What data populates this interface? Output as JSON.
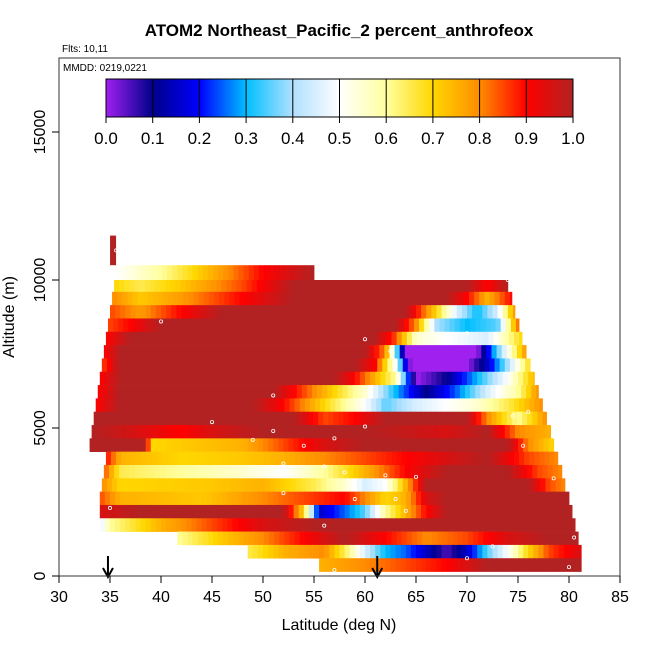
{
  "chart_data": {
    "type": "heatmap",
    "title": "ATOM2 Northeast_Pacific_2 percent_anthrofeox",
    "annotations": {
      "flights": "Flts: 10,11",
      "dates": "MMDD: 0219,0221"
    },
    "xlabel": "Latitude (deg N)",
    "ylabel": "Altitude (m)",
    "xlim": [
      30,
      85
    ],
    "ylim": [
      0,
      17500
    ],
    "xticks": [
      30,
      35,
      40,
      45,
      50,
      55,
      60,
      65,
      70,
      75,
      80,
      85
    ],
    "yticks": [
      0,
      5000,
      10000,
      15000
    ],
    "grid": false,
    "colorbar": {
      "position": "top-inside",
      "ticks": [
        "0.0",
        "0.1",
        "0.2",
        "0.3",
        "0.4",
        "0.5",
        "0.6",
        "0.7",
        "0.8",
        "0.9",
        "1.0"
      ],
      "range": [
        0,
        1
      ],
      "stops": [
        {
          "v": 0.0,
          "c": "#a020f0"
        },
        {
          "v": 0.1,
          "c": "#00008b"
        },
        {
          "v": 0.2,
          "c": "#0000ff"
        },
        {
          "v": 0.3,
          "c": "#00bfff"
        },
        {
          "v": 0.4,
          "c": "#b0e0ff"
        },
        {
          "v": 0.5,
          "c": "#ffffff"
        },
        {
          "v": 0.6,
          "c": "#ffff9f"
        },
        {
          "v": 0.7,
          "c": "#ffd700"
        },
        {
          "v": 0.8,
          "c": "#ff8c00"
        },
        {
          "v": 0.9,
          "c": "#ff0000"
        },
        {
          "v": 1.0,
          "c": "#b22222"
        }
      ]
    },
    "layers": [
      {
        "ybot": 10000,
        "ytop": 10500,
        "x0": 35.6,
        "x1": 55.0,
        "pts": [
          [
            35.6,
            0.5
          ],
          [
            40,
            0.6
          ],
          [
            45,
            0.75
          ],
          [
            50,
            0.9
          ],
          [
            55,
            1.0
          ]
        ]
      },
      {
        "ybot": 9600,
        "ytop": 10000,
        "x0": 35.4,
        "x1": 74.0,
        "pts": [
          [
            35.4,
            0.7
          ],
          [
            38,
            0.65
          ],
          [
            42,
            0.72
          ],
          [
            48,
            0.85
          ],
          [
            53,
            1.0
          ],
          [
            70,
            1.0
          ],
          [
            72,
            0.9
          ],
          [
            74,
            1.0
          ]
        ]
      },
      {
        "ybot": 9150,
        "ytop": 9600,
        "x0": 35.2,
        "x1": 74.4,
        "pts": [
          [
            35.2,
            0.8
          ],
          [
            38,
            0.72
          ],
          [
            42,
            0.78
          ],
          [
            48,
            0.9
          ],
          [
            53,
            1.0
          ],
          [
            68,
            1.0
          ],
          [
            70,
            0.9
          ],
          [
            72,
            0.75
          ],
          [
            74.4,
            0.9
          ]
        ]
      },
      {
        "ybot": 8700,
        "ytop": 9150,
        "x0": 35.0,
        "x1": 74.7,
        "pts": [
          [
            35,
            0.85
          ],
          [
            38,
            0.78
          ],
          [
            42,
            0.9
          ],
          [
            46,
            1.0
          ],
          [
            64,
            1.0
          ],
          [
            67,
            0.7
          ],
          [
            69,
            0.45
          ],
          [
            71,
            0.3
          ],
          [
            73,
            0.45
          ],
          [
            74.7,
            0.8
          ]
        ]
      },
      {
        "ybot": 8250,
        "ytop": 8700,
        "x0": 34.8,
        "x1": 75.1,
        "pts": [
          [
            34.8,
            0.85
          ],
          [
            37,
            0.9
          ],
          [
            40,
            1.0
          ],
          [
            63,
            1.0
          ],
          [
            65,
            0.8
          ],
          [
            67,
            0.4
          ],
          [
            70,
            0.3
          ],
          [
            73,
            0.35
          ],
          [
            75.1,
            0.85
          ]
        ]
      },
      {
        "ybot": 7800,
        "ytop": 8250,
        "x0": 34.6,
        "x1": 75.4,
        "pts": [
          [
            34.6,
            0.9
          ],
          [
            37,
            1.0
          ],
          [
            61,
            1.0
          ],
          [
            63,
            0.85
          ],
          [
            65,
            0.55
          ],
          [
            68,
            0.5
          ],
          [
            72,
            0.45
          ],
          [
            75.4,
            0.7
          ]
        ]
      },
      {
        "ybot": 7350,
        "ytop": 7800,
        "x0": 34.4,
        "x1": 75.8,
        "pts": [
          [
            34.4,
            0.9
          ],
          [
            36,
            1.0
          ],
          [
            60,
            1.0
          ],
          [
            62,
            0.8
          ],
          [
            64,
            0.0
          ],
          [
            71,
            0.0
          ],
          [
            73,
            0.35
          ],
          [
            75.8,
            0.8
          ]
        ]
      },
      {
        "ybot": 6900,
        "ytop": 7350,
        "x0": 34.2,
        "x1": 76.2,
        "pts": [
          [
            34.2,
            0.85
          ],
          [
            36,
            1.0
          ],
          [
            59,
            1.0
          ],
          [
            61,
            0.9
          ],
          [
            63,
            0.5
          ],
          [
            64.5,
            0.0
          ],
          [
            70,
            0.0
          ],
          [
            72,
            0.15
          ],
          [
            74,
            0.4
          ],
          [
            76.2,
            0.7
          ]
        ]
      },
      {
        "ybot": 6450,
        "ytop": 6900,
        "x0": 34.0,
        "x1": 76.6,
        "pts": [
          [
            34,
            0.9
          ],
          [
            36,
            1.0
          ],
          [
            57,
            1.0
          ],
          [
            59,
            0.9
          ],
          [
            61,
            0.75
          ],
          [
            63,
            0.6
          ],
          [
            65,
            0.0
          ],
          [
            68,
            0.1
          ],
          [
            71,
            0.3
          ],
          [
            74,
            0.5
          ],
          [
            76.6,
            0.75
          ]
        ]
      },
      {
        "ybot": 6000,
        "ytop": 6450,
        "x0": 33.8,
        "x1": 77.0,
        "pts": [
          [
            33.8,
            0.9
          ],
          [
            36,
            1.0
          ],
          [
            51,
            1.0
          ],
          [
            54,
            0.85
          ],
          [
            57,
            0.7
          ],
          [
            60,
            0.55
          ],
          [
            63,
            0.3
          ],
          [
            66,
            0.1
          ],
          [
            69,
            0.25
          ],
          [
            72,
            0.45
          ],
          [
            75,
            0.6
          ],
          [
            77,
            0.8
          ]
        ]
      },
      {
        "ybot": 5550,
        "ytop": 6000,
        "x0": 33.6,
        "x1": 77.4,
        "pts": [
          [
            33.6,
            0.9
          ],
          [
            36,
            1.0
          ],
          [
            49,
            1.0
          ],
          [
            52,
            0.9
          ],
          [
            55,
            0.75
          ],
          [
            58,
            0.6
          ],
          [
            60,
            0.5
          ],
          [
            62,
            0.35
          ],
          [
            65,
            0.45
          ],
          [
            68,
            0.5
          ],
          [
            71,
            0.55
          ],
          [
            74,
            0.65
          ],
          [
            77.4,
            0.8
          ]
        ]
      },
      {
        "ybot": 5100,
        "ytop": 5550,
        "x0": 33.4,
        "x1": 77.8,
        "pts": [
          [
            33.4,
            1.0
          ],
          [
            53,
            1.0
          ],
          [
            56,
            0.85
          ],
          [
            59,
            0.9
          ],
          [
            62,
            1.0
          ],
          [
            70,
            1.0
          ],
          [
            72,
            0.8
          ],
          [
            75,
            0.6
          ],
          [
            77.8,
            0.8
          ]
        ]
      },
      {
        "ybot": 4650,
        "ytop": 5100,
        "x0": 33.2,
        "x1": 78.2,
        "pts": [
          [
            33.2,
            1.0
          ],
          [
            42,
            0.9
          ],
          [
            45,
            0.95
          ],
          [
            50,
            1.0
          ],
          [
            60,
            1.0
          ],
          [
            68,
            0.95
          ],
          [
            72,
            1.0
          ],
          [
            75,
            0.8
          ],
          [
            78.2,
            0.75
          ]
        ]
      },
      {
        "ybot": 4200,
        "ytop": 4650,
        "x0": 33.0,
        "x1": 78.5,
        "pts": [
          [
            33,
            1.0
          ],
          [
            38.5,
            1.0
          ],
          [
            39,
            0.7
          ],
          [
            48,
            0.75
          ],
          [
            52,
            0.85
          ],
          [
            56,
            0.95
          ],
          [
            60,
            1.0
          ],
          [
            74,
            1.0
          ],
          [
            76,
            0.8
          ],
          [
            78.5,
            0.7
          ]
        ]
      },
      {
        "ybot": 3750,
        "ytop": 4200,
        "x0": 34.6,
        "x1": 78.9,
        "pts": [
          [
            34.6,
            0.9
          ],
          [
            36,
            0.75
          ],
          [
            42,
            0.7
          ],
          [
            48,
            0.72
          ],
          [
            52,
            0.75
          ],
          [
            56,
            0.8
          ],
          [
            60,
            0.85
          ],
          [
            64,
            0.9
          ],
          [
            68,
            0.95
          ],
          [
            72,
            1.0
          ],
          [
            76,
            0.85
          ],
          [
            78.9,
            0.8
          ]
        ]
      },
      {
        "ybot": 3300,
        "ytop": 3750,
        "x0": 34.4,
        "x1": 79.3,
        "pts": [
          [
            34.4,
            0.85
          ],
          [
            36,
            0.65
          ],
          [
            42,
            0.6
          ],
          [
            48,
            0.55
          ],
          [
            52,
            0.5
          ],
          [
            56,
            0.6
          ],
          [
            60,
            0.75
          ],
          [
            64,
            0.9
          ],
          [
            68,
            1.0
          ],
          [
            74,
            1.0
          ],
          [
            77,
            0.85
          ],
          [
            79.3,
            0.8
          ]
        ]
      },
      {
        "ybot": 2850,
        "ytop": 3300,
        "x0": 34.2,
        "x1": 79.6,
        "pts": [
          [
            34.2,
            0.8
          ],
          [
            36,
            0.7
          ],
          [
            45,
            0.72
          ],
          [
            50,
            0.75
          ],
          [
            55,
            0.65
          ],
          [
            58,
            0.55
          ],
          [
            60,
            0.45
          ],
          [
            62,
            0.5
          ],
          [
            64,
            0.75
          ],
          [
            66,
            1.0
          ],
          [
            76,
            1.0
          ],
          [
            78,
            0.85
          ],
          [
            79.6,
            0.8
          ]
        ]
      },
      {
        "ybot": 2400,
        "ytop": 2850,
        "x0": 34.0,
        "x1": 80.0,
        "pts": [
          [
            34,
            0.85
          ],
          [
            36,
            0.75
          ],
          [
            44,
            0.72
          ],
          [
            50,
            0.8
          ],
          [
            54,
            0.85
          ],
          [
            58,
            0.9
          ],
          [
            60,
            0.8
          ],
          [
            62,
            0.7
          ],
          [
            64,
            0.75
          ],
          [
            66,
            0.95
          ],
          [
            68,
            1.0
          ],
          [
            80,
            1.0
          ]
        ]
      },
      {
        "ybot": 1950,
        "ytop": 2400,
        "x0": 34.0,
        "x1": 80.3,
        "pts": [
          [
            34,
            0.95
          ],
          [
            38,
            1.0
          ],
          [
            52,
            1.0
          ],
          [
            54,
            0.7
          ],
          [
            55.5,
            0.15
          ],
          [
            58,
            0.25
          ],
          [
            60,
            0.35
          ],
          [
            62,
            0.6
          ],
          [
            64,
            0.75
          ],
          [
            66,
            0.9
          ],
          [
            68,
            1.0
          ],
          [
            80.3,
            1.0
          ]
        ]
      },
      {
        "ybot": 1500,
        "ytop": 1950,
        "x0": 34.0,
        "x1": 80.6,
        "pts": [
          [
            34,
            0.45
          ],
          [
            35,
            0.6
          ],
          [
            40,
            0.75
          ],
          [
            45,
            0.85
          ],
          [
            50,
            0.95
          ],
          [
            55,
            1.0
          ],
          [
            80.6,
            1.0
          ]
        ]
      },
      {
        "ybot": 1050,
        "ytop": 1500,
        "x0": 41.6,
        "x1": 80.9,
        "pts": [
          [
            41.6,
            0.6
          ],
          [
            46,
            0.72
          ],
          [
            50,
            0.8
          ],
          [
            54,
            0.9
          ],
          [
            58,
            1.0
          ],
          [
            62,
            0.9
          ],
          [
            66,
            0.8
          ],
          [
            70,
            0.85
          ],
          [
            74,
            0.95
          ],
          [
            78,
            1.0
          ],
          [
            80.9,
            1.0
          ]
        ]
      },
      {
        "ybot": 600,
        "ytop": 1050,
        "x0": 48.5,
        "x1": 81.2,
        "pts": [
          [
            48.5,
            0.65
          ],
          [
            52,
            0.75
          ],
          [
            56,
            0.8
          ],
          [
            58,
            0.65
          ],
          [
            60,
            0.45
          ],
          [
            62,
            0.3
          ],
          [
            64,
            0.25
          ],
          [
            66,
            0.15
          ],
          [
            68,
            0.05
          ],
          [
            70,
            0.15
          ],
          [
            72,
            0.35
          ],
          [
            74,
            0.5
          ],
          [
            76,
            0.7
          ],
          [
            78,
            0.85
          ],
          [
            81.2,
            0.95
          ]
        ]
      },
      {
        "ybot": 150,
        "ytop": 600,
        "x0": 55.5,
        "x1": 81.2,
        "pts": [
          [
            55.5,
            0.75
          ],
          [
            60,
            0.8
          ],
          [
            64,
            0.85
          ],
          [
            68,
            0.9
          ],
          [
            72,
            1.0
          ],
          [
            81.2,
            1.0
          ]
        ]
      }
    ],
    "marker_bar": {
      "x": 35.3,
      "y0": 10500,
      "y1": 11500,
      "value": 1.0
    },
    "samples": [
      [
        35.6,
        11000
      ],
      [
        40,
        8600
      ],
      [
        60,
        8000
      ],
      [
        62.5,
        7600
      ],
      [
        70,
        8200
      ],
      [
        74,
        10000
      ],
      [
        51,
        6100
      ],
      [
        45,
        5200
      ],
      [
        49,
        4600
      ],
      [
        51,
        4900
      ],
      [
        60,
        5050
      ],
      [
        57,
        4650
      ],
      [
        54,
        4400
      ],
      [
        56,
        3700
      ],
      [
        58,
        3500
      ],
      [
        62,
        3400
      ],
      [
        65,
        3350
      ],
      [
        59,
        2600
      ],
      [
        63,
        2600
      ],
      [
        52,
        2800
      ],
      [
        35,
        2300
      ],
      [
        56,
        1700
      ],
      [
        64,
        2200
      ],
      [
        80.5,
        1300
      ],
      [
        74.5,
        5400
      ],
      [
        76,
        5550
      ],
      [
        78.5,
        3300
      ],
      [
        72.5,
        1000
      ],
      [
        57,
        200
      ],
      [
        80,
        300
      ],
      [
        70,
        600
      ],
      [
        75.5,
        4400
      ],
      [
        52,
        3800
      ]
    ],
    "arrows": [
      {
        "x": 34.8,
        "label": ""
      },
      {
        "x": 61.2,
        "label": ""
      }
    ]
  }
}
